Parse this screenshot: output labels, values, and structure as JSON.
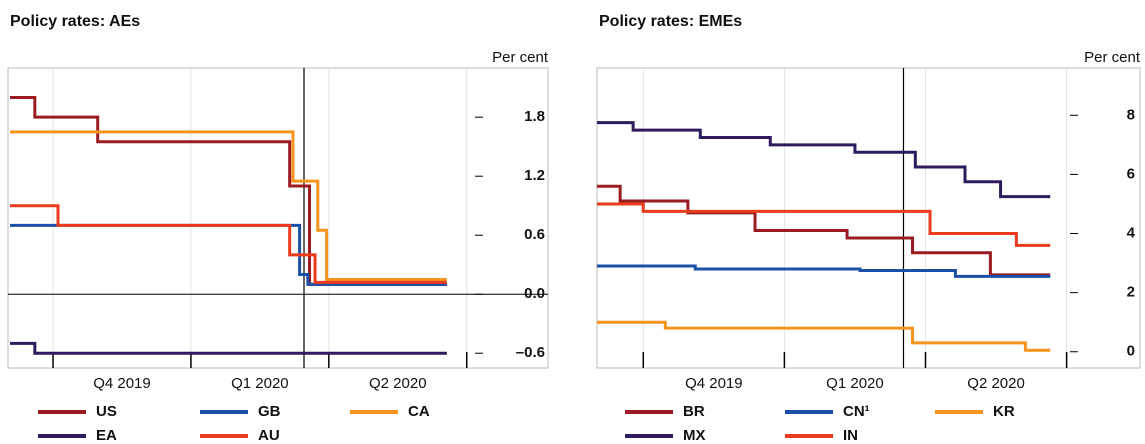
{
  "chart_data": [
    {
      "type": "line",
      "title": "Policy rates: AEs",
      "y_axis_label": "Per cent",
      "xlim": [
        2019.672,
        2020.515
      ],
      "ylim": [
        -0.75,
        2.3
      ],
      "xticks": [
        2019.75,
        2020.0,
        2020.25,
        2020.5
      ],
      "xtick_labels": [
        {
          "value": 2019.875,
          "label": "Q4 2019"
        },
        {
          "value": 2020.125,
          "label": "Q1 2020"
        },
        {
          "value": 2020.375,
          "label": "Q2 2020"
        }
      ],
      "yticks": [
        {
          "value": -0.6,
          "label": "–0.6"
        },
        {
          "value": 0,
          "label": "0.0"
        },
        0.6,
        1.2,
        1.8
      ],
      "vline": 2020.205,
      "zero_line": true,
      "grid": true,
      "series": [
        {
          "name": "US",
          "color": "#9b1b22",
          "x": [
            2019.672,
            2019.717,
            2019.717,
            2019.831,
            2019.831,
            2020.179,
            2020.179,
            2020.215,
            2020.215,
            2020.464
          ],
          "values": [
            2.0,
            2.0,
            1.8,
            1.8,
            1.55,
            1.55,
            1.1,
            1.1,
            0.1,
            0.1
          ]
        },
        {
          "name": "GB",
          "color": "#1c4fa8",
          "x": [
            2019.672,
            2020.197,
            2020.197,
            2020.212,
            2020.212,
            2020.464
          ],
          "values": [
            0.7,
            0.7,
            0.2,
            0.2,
            0.1,
            0.1
          ]
        },
        {
          "name": "CA",
          "color": "#f7941d",
          "x": [
            2019.672,
            2020.185,
            2020.185,
            2020.23,
            2020.23,
            2020.246,
            2020.246,
            2020.464
          ],
          "values": [
            1.65,
            1.65,
            1.15,
            1.15,
            0.65,
            0.65,
            0.15,
            0.15
          ]
        },
        {
          "name": "EA",
          "color": "#2d1b5e",
          "x": [
            2019.672,
            2019.717,
            2019.717,
            2020.464
          ],
          "values": [
            -0.5,
            -0.5,
            -0.6,
            -0.6
          ]
        },
        {
          "name": "AU",
          "color": "#ea3c1c",
          "x": [
            2019.672,
            2019.759,
            2019.759,
            2020.179,
            2020.179,
            2020.225,
            2020.225,
            2020.464
          ],
          "values": [
            0.9,
            0.9,
            0.7,
            0.7,
            0.4,
            0.4,
            0.12,
            0.12
          ]
        }
      ]
    },
    {
      "type": "line",
      "title": "Policy rates: EMEs",
      "y_axis_label": "Per cent",
      "xlim": [
        2019.668,
        2020.506
      ],
      "ylim": [
        -0.55,
        9.6
      ],
      "xticks": [
        2019.75,
        2020.0,
        2020.25,
        2020.5
      ],
      "xtick_labels": [
        {
          "value": 2019.875,
          "label": "Q4 2019"
        },
        {
          "value": 2020.125,
          "label": "Q1 2020"
        },
        {
          "value": 2020.375,
          "label": "Q2 2020"
        }
      ],
      "yticks": [
        0,
        2,
        4,
        6,
        8
      ],
      "vline": 2020.211,
      "zero_line": false,
      "grid": true,
      "series": [
        {
          "name": "BR",
          "color": "#9b1b22",
          "x": [
            2019.668,
            2019.709,
            2019.709,
            2019.829,
            2019.829,
            2019.948,
            2019.948,
            2020.111,
            2020.111,
            2020.227,
            2020.227,
            2020.365,
            2020.365,
            2020.471
          ],
          "values": [
            5.6,
            5.6,
            5.1,
            5.1,
            4.7,
            4.7,
            4.1,
            4.1,
            3.85,
            3.85,
            3.35,
            3.35,
            2.6,
            2.6
          ]
        },
        {
          "name": "CN¹",
          "color": "#1c4fa8",
          "x": [
            2019.668,
            2019.842,
            2019.842,
            2020.134,
            2020.134,
            2020.303,
            2020.303,
            2020.471
          ],
          "values": [
            2.9,
            2.9,
            2.8,
            2.8,
            2.75,
            2.75,
            2.55,
            2.55
          ]
        },
        {
          "name": "KR",
          "color": "#f7941d",
          "x": [
            2019.668,
            2019.789,
            2019.789,
            2020.227,
            2020.227,
            2020.427,
            2020.427,
            2020.471
          ],
          "values": [
            1.0,
            1.0,
            0.8,
            0.8,
            0.3,
            0.3,
            0.05,
            0.05
          ]
        },
        {
          "name": "MX",
          "color": "#2d1b5e",
          "x": [
            2019.668,
            2019.732,
            2019.732,
            2019.851,
            2019.851,
            2019.975,
            2019.975,
            2020.125,
            2020.125,
            2020.232,
            2020.232,
            2020.32,
            2020.32,
            2020.383,
            2020.383,
            2020.471
          ],
          "values": [
            7.75,
            7.75,
            7.5,
            7.5,
            7.25,
            7.25,
            7.0,
            7.0,
            6.75,
            6.75,
            6.25,
            6.25,
            5.75,
            5.75,
            5.25,
            5.25
          ]
        },
        {
          "name": "IN",
          "color": "#ea3c1c",
          "x": [
            2019.668,
            2019.75,
            2019.75,
            2020.258,
            2020.258,
            2020.411,
            2020.411,
            2020.471
          ],
          "values": [
            5.0,
            5.0,
            4.75,
            4.75,
            4.0,
            4.0,
            3.6,
            3.6
          ]
        }
      ]
    }
  ]
}
